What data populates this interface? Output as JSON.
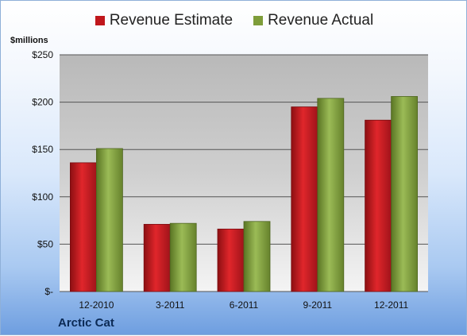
{
  "legend": {
    "items": [
      {
        "label": "Revenue Estimate",
        "color": "#c0171c"
      },
      {
        "label": "Revenue Actual",
        "color": "#7e9d3a"
      }
    ]
  },
  "unit_label": "$millions",
  "company": "Arctic Cat",
  "chart_data": {
    "type": "bar",
    "categories": [
      "12-2010",
      "3-2011",
      "6-2011",
      "9-2011",
      "12-2011"
    ],
    "series": [
      {
        "name": "Revenue Estimate",
        "values": [
          136,
          71,
          66,
          195,
          181
        ],
        "color": "#c0171c"
      },
      {
        "name": "Revenue Actual",
        "values": [
          151,
          72,
          74,
          204,
          206
        ],
        "color": "#7e9d3a"
      }
    ],
    "ylim": [
      0,
      250
    ],
    "yticks": [
      0,
      50,
      100,
      150,
      200,
      250
    ],
    "ytick_labels": [
      "$-",
      "$50",
      "$100",
      "$150",
      "$200",
      "$250"
    ],
    "grid": true,
    "legend_position": "top"
  }
}
